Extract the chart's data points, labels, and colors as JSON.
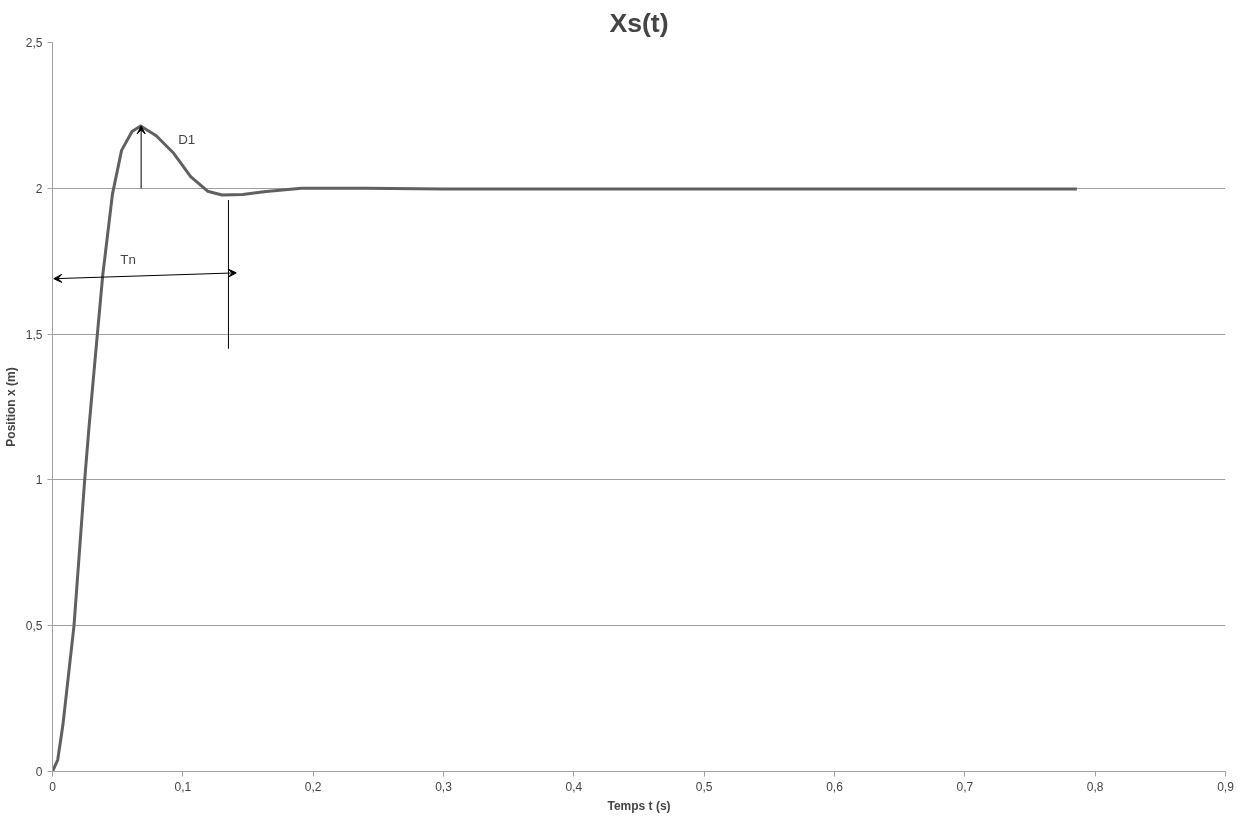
{
  "chart_data": {
    "type": "line",
    "title": "Xs(t)",
    "xlabel": "Temps t (s)",
    "ylabel": "Position x (m)",
    "series": [
      {
        "color": "#606060",
        "x": [
          0,
          0.004,
          0.008,
          0.0165,
          0.0247,
          0.028,
          0.033,
          0.0385,
          0.046,
          0.053,
          0.061,
          0.0676,
          0.0796,
          0.093,
          0.106,
          0.119,
          0.13,
          0.146,
          0.164,
          0.191,
          0.24,
          0.3,
          0.5,
          0.786
        ],
        "values": [
          0,
          0.04,
          0.16,
          0.5,
          1,
          1.18,
          1.43,
          1.7,
          1.98,
          2.13,
          2.195,
          2.214,
          2.18,
          2.12,
          2.04,
          1.99,
          1.977,
          1.979,
          1.989,
          2.0,
          2.0,
          1.998,
          1.998,
          1.998
        ]
      }
    ],
    "xlim": [
      0,
      0.9
    ],
    "ylim": [
      0,
      2.5
    ],
    "xticks": [
      0,
      {
        "value": 0.1,
        "label": "0,1"
      },
      {
        "value": 0.2,
        "label": "0,2"
      },
      {
        "value": 0.3,
        "label": "0,3"
      },
      {
        "value": 0.4,
        "label": "0,4"
      },
      {
        "value": 0.5,
        "label": "0,5"
      },
      {
        "value": 0.6,
        "label": "0,6"
      },
      {
        "value": 0.7,
        "label": "0,7"
      },
      {
        "value": 0.8,
        "label": "0,8"
      },
      {
        "value": 0.9,
        "label": "0,9"
      }
    ],
    "yticks": [
      0,
      {
        "value": 0.5,
        "label": "0,5"
      },
      1,
      {
        "value": 1.5,
        "label": "1,5"
      },
      2,
      {
        "value": 2.5,
        "label": "2,5"
      }
    ],
    "grid": "y",
    "marker": "none",
    "line_style": "solid",
    "ref_lines": [
      {
        "axis": "x",
        "value": 0.135,
        "color": "#000000"
      }
    ],
    "annotations": [
      "D1",
      "Tn"
    ]
  }
}
